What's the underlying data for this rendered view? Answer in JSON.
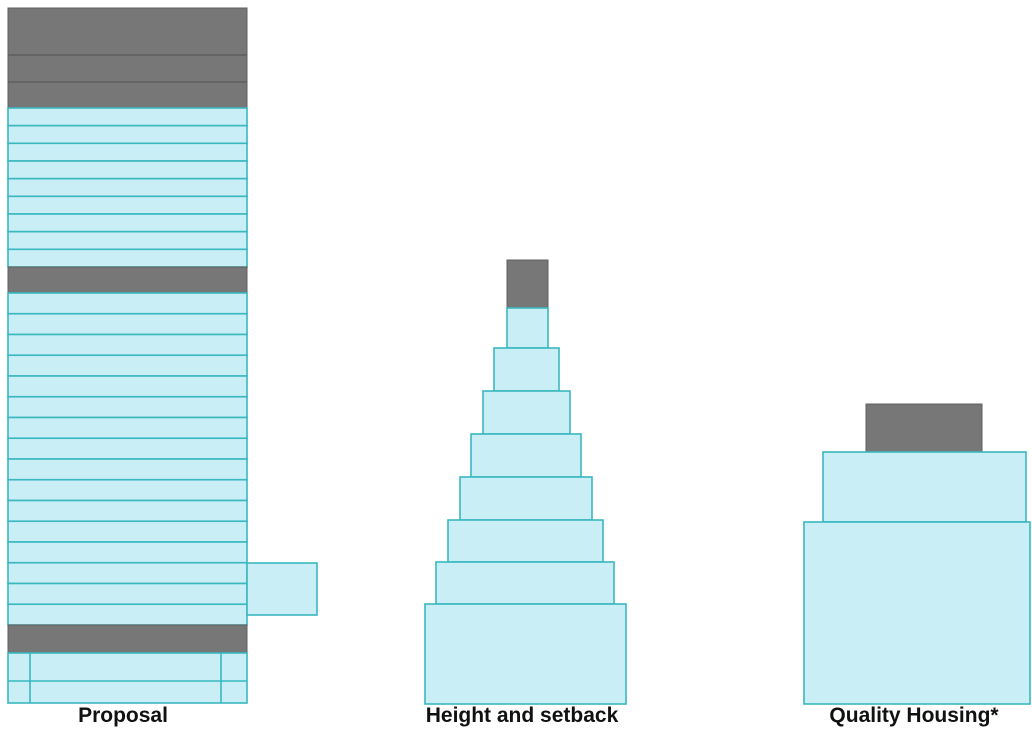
{
  "labels": {
    "proposal": "Proposal",
    "height_setback": "Height and setback",
    "quality_housing": "Quality Housing*"
  },
  "colors": {
    "floor_fill": "#c9eef6",
    "floor_outline": "#39b8bf",
    "mechanical_fill": "#777777"
  }
}
